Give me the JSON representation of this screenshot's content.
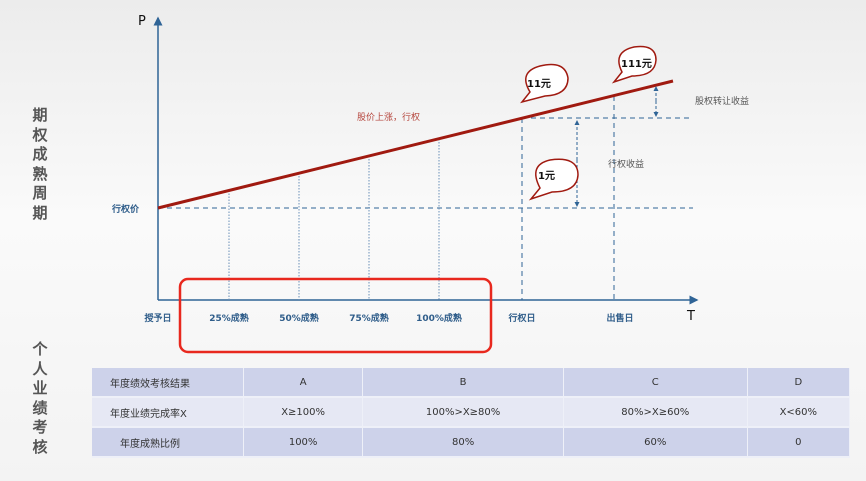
{
  "side_labels": {
    "top": "期权成熟周期",
    "bottom": "个人业绩考核"
  },
  "diagram": {
    "y_axis": "P",
    "x_axis": "T",
    "strike_price_label": "行权价",
    "rise_label": "股价上涨，行权",
    "transfer_gain_label": "股权转让收益",
    "exercise_gain_label": "行权收益",
    "x_ticks": [
      "授予日",
      "25%成熟",
      "50%成熟",
      "75%成熟",
      "100%成熟",
      "行权日",
      "出售日"
    ],
    "bubbles": [
      "11元",
      "111元",
      "1元"
    ],
    "colors": {
      "line": "#a01a10",
      "axis": "#2f6496",
      "highlight": "#e8281e"
    }
  },
  "table": {
    "rows": [
      [
        "年度绩效考核结果",
        "A",
        "B",
        "C",
        "D"
      ],
      [
        "年度业绩完成率X",
        "X≥100%",
        "100%>X≥80%",
        "80%>X≥60%",
        "X<60%"
      ],
      [
        "年度成熟比例",
        "100%",
        "80%",
        "60%",
        "0"
      ]
    ]
  }
}
